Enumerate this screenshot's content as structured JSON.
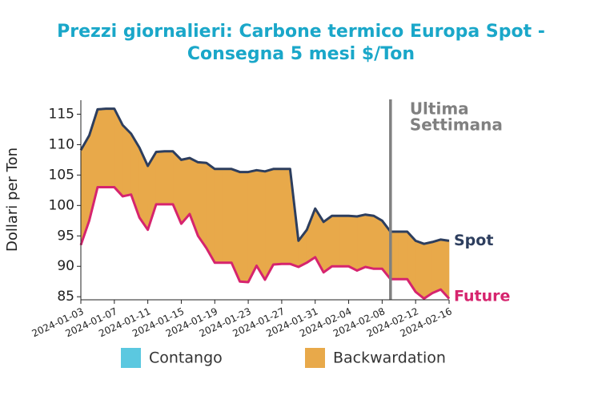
{
  "chart_data": {
    "type": "area-band",
    "title": [
      "Prezzi giornalieri: Carbone termico Europa Spot -",
      "Consegna 5 mesi $/Ton"
    ],
    "y_label": "Dollari per Ton",
    "x": [
      "2024-01-03",
      "2024-01-04",
      "2024-01-05",
      "2024-01-06",
      "2024-01-07",
      "2024-01-08",
      "2024-01-09",
      "2024-01-10",
      "2024-01-11",
      "2024-01-12",
      "2024-01-13",
      "2024-01-14",
      "2024-01-15",
      "2024-01-16",
      "2024-01-17",
      "2024-01-18",
      "2024-01-19",
      "2024-01-20",
      "2024-01-21",
      "2024-01-22",
      "2024-01-23",
      "2024-01-24",
      "2024-01-25",
      "2024-01-26",
      "2024-01-27",
      "2024-01-28",
      "2024-01-29",
      "2024-01-30",
      "2024-01-31",
      "2024-02-01",
      "2024-02-02",
      "2024-02-03",
      "2024-02-04",
      "2024-02-05",
      "2024-02-06",
      "2024-02-07",
      "2024-02-08",
      "2024-02-09",
      "2024-02-10",
      "2024-02-11",
      "2024-02-12",
      "2024-02-13",
      "2024-02-14",
      "2024-02-15",
      "2024-02-16"
    ],
    "series": [
      {
        "name": "Spot",
        "color": "#2d3e5e",
        "values": [
          109.1,
          111.5,
          115.8,
          115.9,
          115.9,
          113.2,
          111.8,
          109.5,
          106.5,
          108.8,
          108.9,
          108.9,
          107.5,
          107.8,
          107.1,
          107.0,
          106.0,
          106.0,
          106.0,
          105.5,
          105.5,
          105.8,
          105.6,
          106.0,
          106.0,
          106.0,
          94.2,
          96.0,
          99.5,
          97.3,
          98.3,
          98.3,
          98.3,
          98.2,
          98.5,
          98.3,
          97.5,
          95.7,
          95.7,
          95.7,
          94.2,
          93.7,
          94.0,
          94.4,
          94.2
        ]
      },
      {
        "name": "Future",
        "color": "#d6246e",
        "values": [
          93.5,
          97.5,
          103.0,
          103.0,
          103.0,
          101.5,
          101.8,
          98.0,
          96.0,
          100.2,
          100.2,
          100.2,
          97.0,
          98.6,
          95.0,
          93.0,
          90.6,
          90.6,
          90.6,
          87.5,
          87.4,
          90.1,
          87.8,
          90.3,
          90.4,
          90.4,
          89.9,
          90.6,
          91.5,
          89.0,
          90.0,
          90.0,
          90.0,
          89.3,
          89.9,
          89.6,
          89.6,
          87.9,
          87.9,
          87.9,
          85.8,
          84.7,
          85.6,
          86.2,
          84.7
        ]
      }
    ],
    "fill_legend": [
      {
        "name": "Contango",
        "color": "#5bc8e0"
      },
      {
        "name": "Backwardation",
        "color": "#e8a94a"
      }
    ],
    "annotation": {
      "x": "2024-02-09",
      "lines": [
        "Ultima",
        "Settimana"
      ],
      "color": "#808080"
    },
    "xlim": [
      "2024-01-03",
      "2024-02-16"
    ],
    "xticks": [
      "2024-01-03",
      "2024-01-07",
      "2024-01-11",
      "2024-01-15",
      "2024-01-19",
      "2024-01-23",
      "2024-01-27",
      "2024-01-31",
      "2024-02-04",
      "2024-02-08",
      "2024-02-12",
      "2024-02-16"
    ],
    "ylim": [
      84.5,
      117.3
    ],
    "yticks": [
      85,
      90,
      95,
      100,
      105,
      110,
      115
    ],
    "grid": false
  }
}
